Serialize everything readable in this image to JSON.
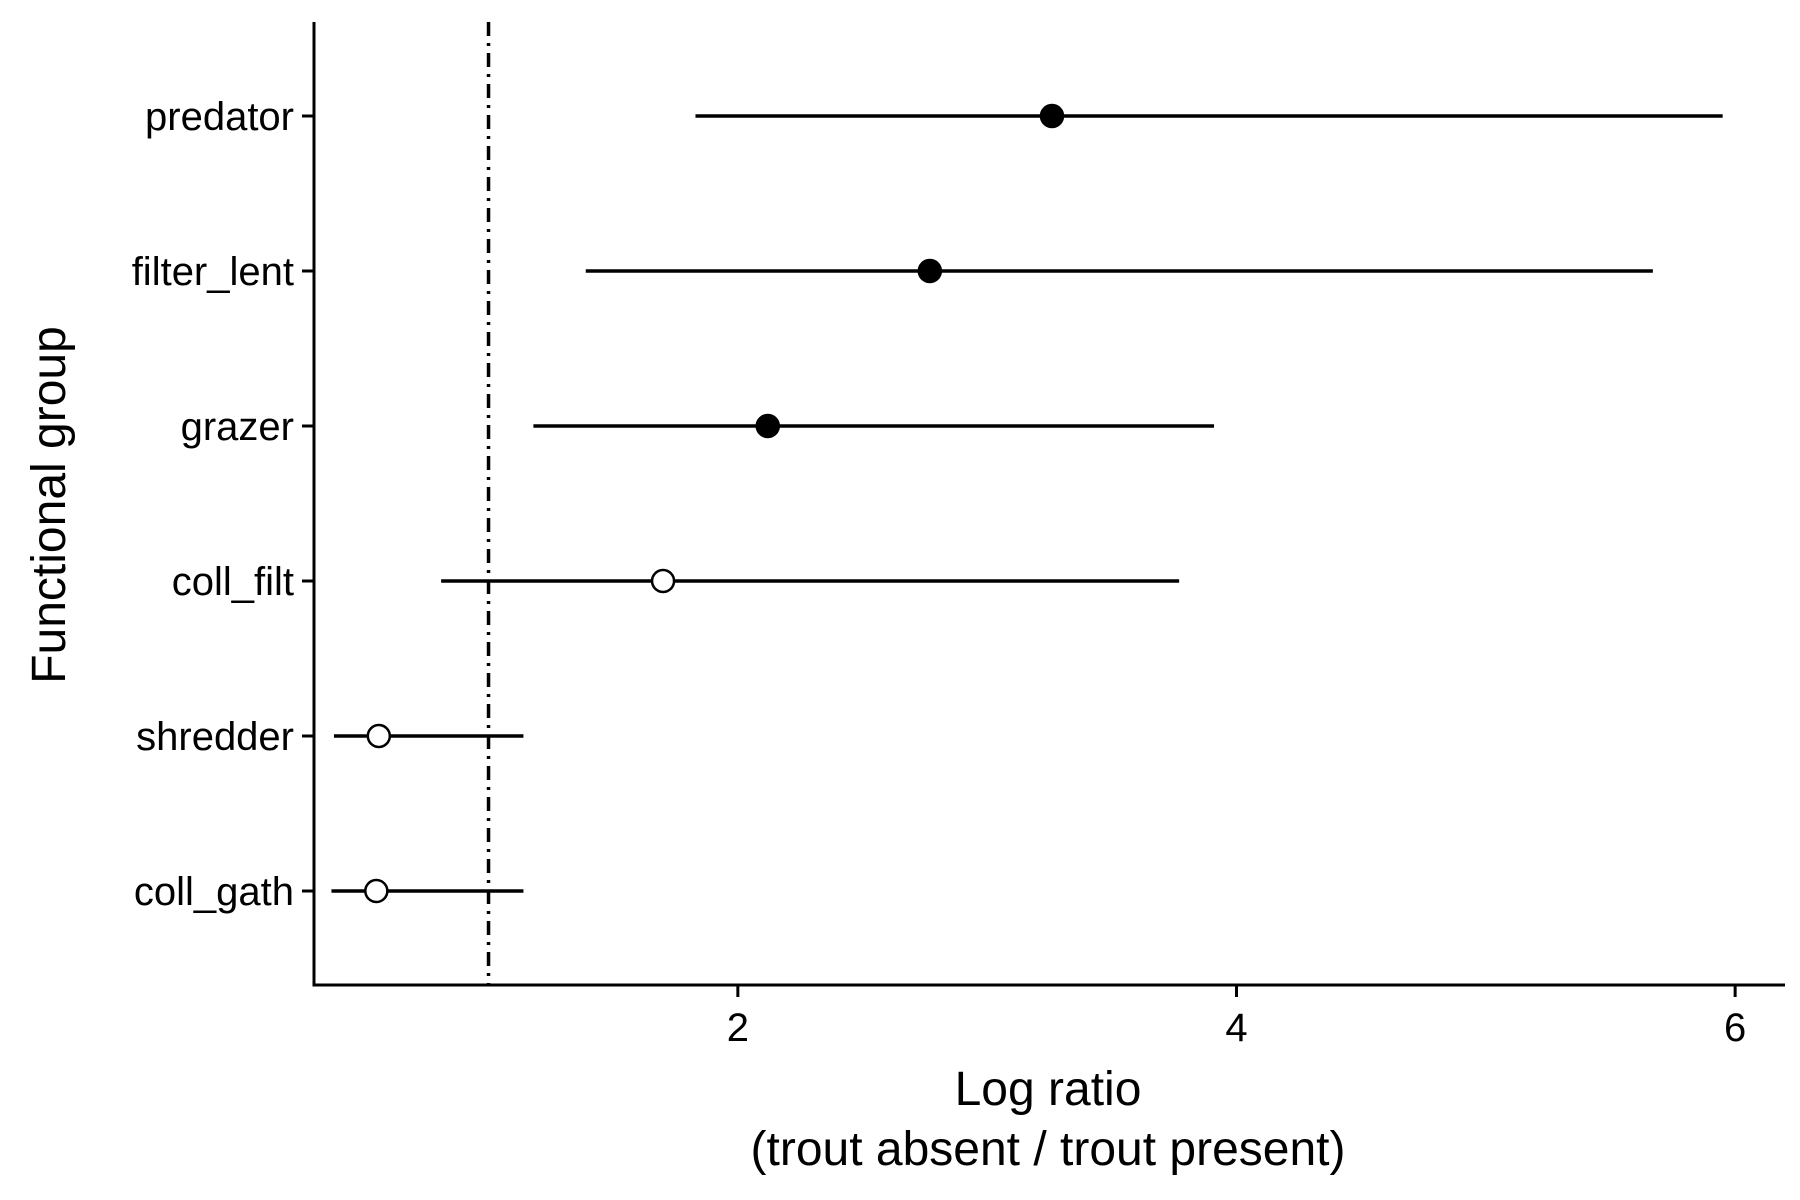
{
  "chart_data": {
    "type": "scatter",
    "xlabel": [
      "Log ratio",
      "(trout absent / trout present)"
    ],
    "ylabel": "Functional group",
    "xlim": [
      0.3,
      6.2
    ],
    "x_ticks": [
      2,
      4,
      6
    ],
    "reference_line_x": 1.0,
    "grid": false,
    "legend": "none",
    "categories": [
      "predator",
      "filter_lent",
      "grazer",
      "coll_filt",
      "shredder",
      "coll_gath"
    ],
    "estimates": [
      3.26,
      2.77,
      2.12,
      1.7,
      0.56,
      0.55
    ],
    "lower": [
      1.83,
      1.39,
      1.18,
      0.81,
      0.38,
      0.37
    ],
    "upper": [
      5.95,
      5.67,
      3.91,
      3.77,
      1.14,
      1.14
    ],
    "significant": [
      true,
      true,
      true,
      false,
      false,
      false
    ],
    "colors": {
      "line": "#000000",
      "filled": "#000000",
      "open_fill": "#ffffff"
    }
  }
}
